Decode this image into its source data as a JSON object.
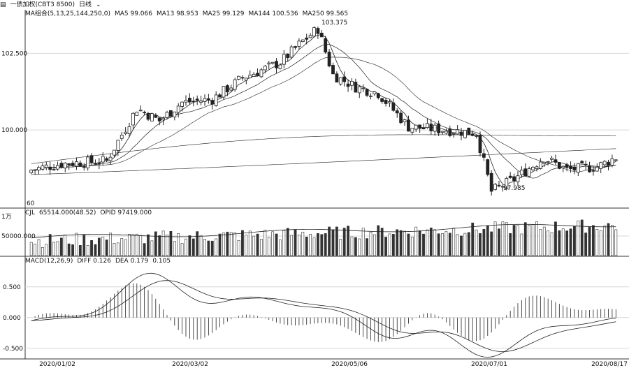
{
  "header": {
    "contract": "一债加权(CBT3 8500)",
    "period": "日线",
    "ma_label": "MA组合(5,13,25,144,250,0)",
    "ma_values": [
      "MA5 99.066",
      "MA13 98.953",
      "MA25 99.129",
      "MA144 100.536",
      "MA250 99.565"
    ],
    "vol_label": "CJL",
    "vol_values": [
      "65514.000(48.52)",
      "OPID 97419.000"
    ],
    "macd_label": "MACD(12,26,9)",
    "macd_values": [
      "DIFF 0.126",
      "DEA 0.179",
      "0.105"
    ]
  },
  "chart_data": {
    "type": "candlestick",
    "x_ticks": [
      "2020/01/02",
      "2020/03/02",
      "2020/05/06",
      "2020/07/01",
      "2020/08/17"
    ],
    "price": {
      "y_ticks": [
        "102.500",
        "100.000"
      ],
      "high_annotation": "103.375",
      "low_annotation": "97.985",
      "left_marker": "60",
      "ylim": [
        97.5,
        103.6
      ]
    },
    "volume": {
      "unit_label": "1万",
      "y_ticks": [
        "50000.000"
      ],
      "ylim": [
        0,
        100000
      ]
    },
    "macd": {
      "y_ticks": [
        "0.500",
        "0.000",
        "-0.500"
      ],
      "ylim": [
        -0.65,
        0.85
      ]
    }
  },
  "colors": {
    "candle": "#222222",
    "line": "#222222",
    "grid": "#d8d8d8"
  }
}
